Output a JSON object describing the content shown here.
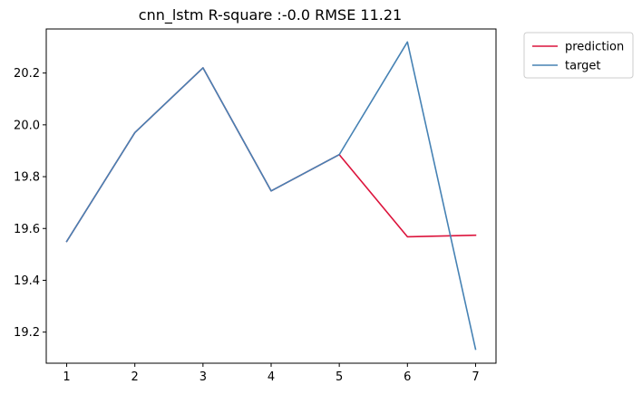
{
  "chart_data": {
    "type": "line",
    "title": "cnn_lstm R-square :-0.0 RMSE 11.21",
    "xlabel": "",
    "ylabel": "",
    "x": [
      1,
      2,
      3,
      4,
      5,
      6,
      7
    ],
    "xlim": [
      0.7,
      7.3
    ],
    "ylim": [
      19.08,
      20.37
    ],
    "xticks": [
      "1",
      "2",
      "3",
      "4",
      "5",
      "6",
      "7"
    ],
    "yticks": [
      "19.2",
      "19.4",
      "19.6",
      "19.8",
      "20.0",
      "20.2"
    ],
    "grid": false,
    "legend_position": "outside-top-right",
    "series": [
      {
        "name": "prediction",
        "color": "#dc143c",
        "values": [
          19.55,
          19.97,
          20.22,
          19.745,
          19.885,
          19.568,
          19.574
        ]
      },
      {
        "name": "target",
        "color": "#4682b4",
        "values": [
          19.55,
          19.97,
          20.22,
          19.745,
          19.885,
          20.32,
          19.134
        ]
      }
    ]
  }
}
